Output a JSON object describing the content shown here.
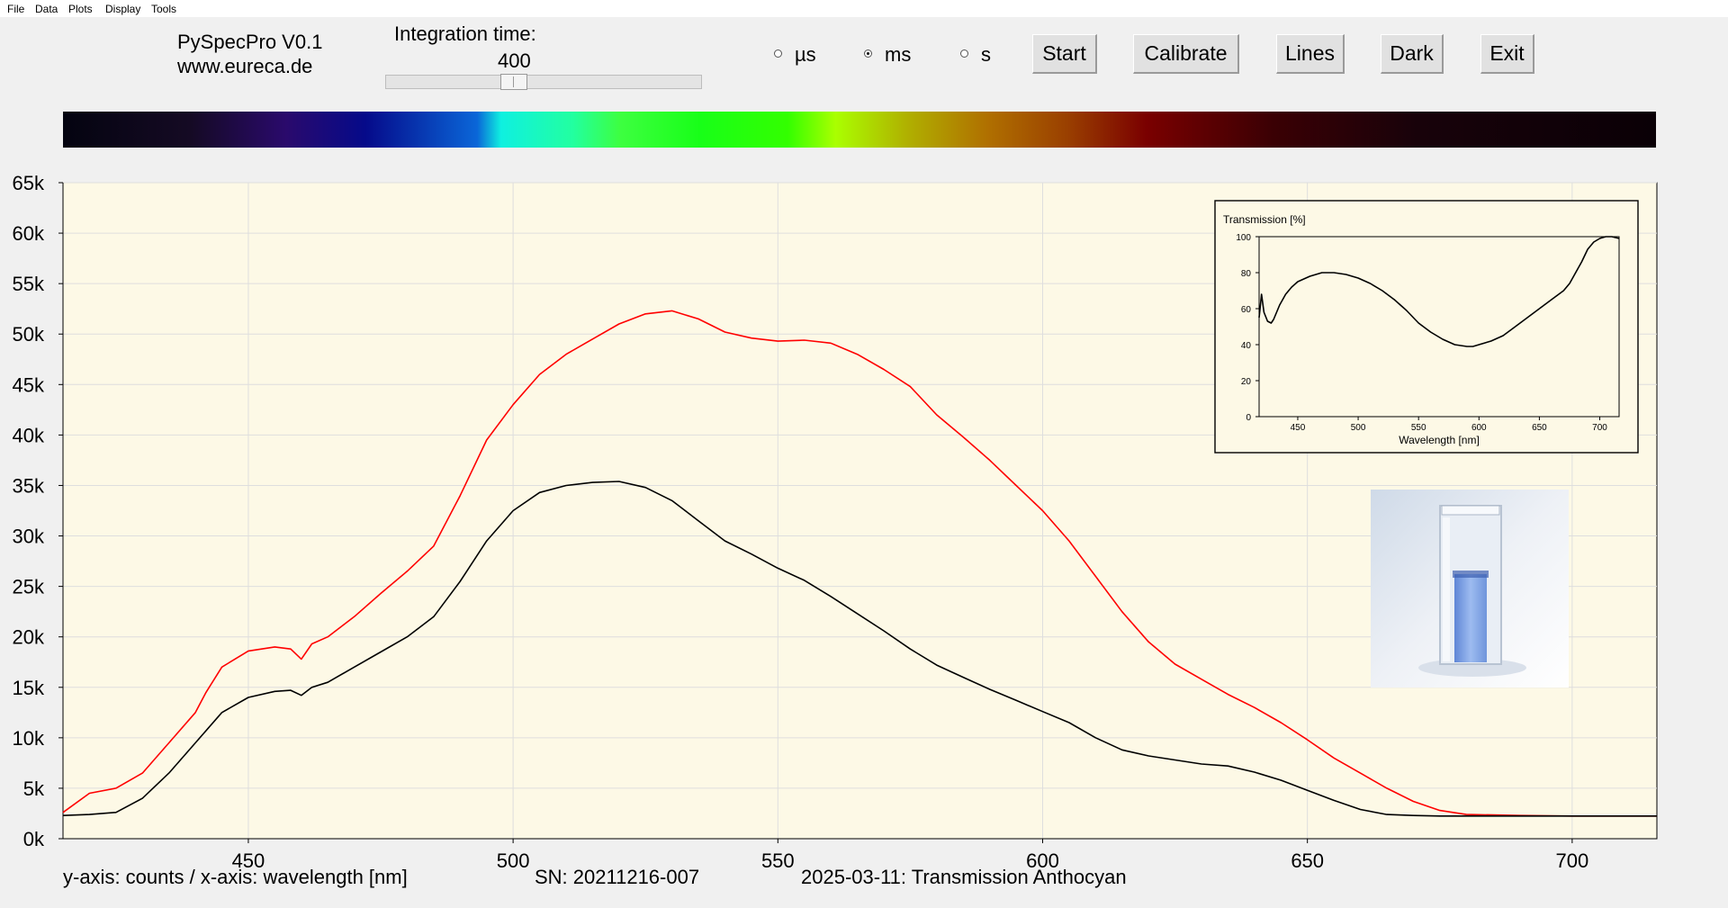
{
  "menu": [
    "File",
    "Data",
    "Plots",
    "Display",
    "Tools"
  ],
  "app": {
    "name": "PySpecPro V0.1",
    "website": "www.eureca.de"
  },
  "integration": {
    "label": "Integration time:",
    "value": "400"
  },
  "units": [
    {
      "label": "µs",
      "selected": false
    },
    {
      "label": "ms",
      "selected": true
    },
    {
      "label": "s",
      "selected": false
    }
  ],
  "buttons": {
    "start": "Start",
    "calibrate": "Calibrate",
    "lines": "Lines",
    "dark": "Dark",
    "exit": "Exit"
  },
  "footer": {
    "axes_note": "y-axis: counts / x-axis: wavelength [nm]",
    "serial": "SN: 20211216-007",
    "note": "2025-03-11: Transmission Anthocyan"
  },
  "colors": {
    "plot_bg": "#fdf9e6",
    "reference": "#ff0000",
    "sample": "#000000"
  },
  "chart_data": [
    {
      "type": "line",
      "title": "",
      "xlabel": "",
      "ylabel": "",
      "xlim": [
        415,
        716
      ],
      "ylim": [
        0,
        65000
      ],
      "xticks": [
        "450",
        "500",
        "550",
        "600",
        "650",
        "700"
      ],
      "xtick_values": [
        450,
        500,
        550,
        600,
        650,
        700
      ],
      "yticks": [
        "0k",
        "5k",
        "10k",
        "15k",
        "20k",
        "25k",
        "30k",
        "35k",
        "40k",
        "45k",
        "50k",
        "55k",
        "60k",
        "65k"
      ],
      "ytick_values": [
        0,
        5000,
        10000,
        15000,
        20000,
        25000,
        30000,
        35000,
        40000,
        45000,
        50000,
        55000,
        60000,
        65000
      ],
      "grid": true,
      "series": [
        {
          "color": "#ff0000",
          "x": [
            415,
            420,
            425,
            430,
            435,
            440,
            442,
            445,
            450,
            455,
            458,
            460,
            462,
            465,
            470,
            475,
            480,
            485,
            490,
            495,
            500,
            505,
            510,
            515,
            520,
            525,
            530,
            535,
            540,
            545,
            550,
            555,
            560,
            565,
            570,
            575,
            580,
            585,
            590,
            595,
            600,
            605,
            610,
            615,
            620,
            625,
            630,
            635,
            640,
            645,
            650,
            655,
            660,
            665,
            670,
            675,
            680,
            685,
            690,
            700,
            716
          ],
          "y": [
            2600,
            4500,
            5000,
            6500,
            9500,
            12500,
            14500,
            17000,
            18600,
            19000,
            18800,
            17800,
            19300,
            20000,
            22000,
            24300,
            26500,
            29000,
            34000,
            39500,
            43000,
            46000,
            48000,
            49500,
            51000,
            52000,
            52300,
            51500,
            50200,
            49600,
            49300,
            49400,
            49100,
            48000,
            46500,
            44800,
            42000,
            39800,
            37500,
            35000,
            32500,
            29500,
            26000,
            22500,
            19500,
            17300,
            15800,
            14300,
            13000,
            11500,
            9800,
            8000,
            6500,
            5000,
            3700,
            2800,
            2400,
            2350,
            2300,
            2250,
            2250
          ]
        },
        {
          "color": "#000000",
          "x": [
            415,
            420,
            425,
            430,
            435,
            440,
            445,
            450,
            455,
            458,
            460,
            462,
            465,
            470,
            475,
            480,
            485,
            490,
            495,
            500,
            505,
            510,
            515,
            520,
            525,
            530,
            535,
            540,
            545,
            550,
            555,
            560,
            565,
            570,
            575,
            580,
            585,
            590,
            595,
            600,
            605,
            610,
            615,
            620,
            625,
            630,
            635,
            640,
            645,
            650,
            655,
            660,
            665,
            670,
            675,
            680,
            685,
            690,
            700,
            716
          ],
          "y": [
            2300,
            2400,
            2600,
            4000,
            6500,
            9500,
            12500,
            14000,
            14600,
            14700,
            14200,
            15000,
            15500,
            17000,
            18500,
            20000,
            22000,
            25500,
            29500,
            32500,
            34300,
            35000,
            35300,
            35400,
            34800,
            33500,
            31500,
            29500,
            28200,
            26800,
            25600,
            24000,
            22300,
            20600,
            18800,
            17200,
            16000,
            14800,
            13700,
            12600,
            11500,
            10000,
            8800,
            8200,
            7800,
            7400,
            7200,
            6600,
            5800,
            4800,
            3800,
            2900,
            2400,
            2300,
            2250,
            2250,
            2250,
            2250,
            2250,
            2250
          ]
        }
      ]
    },
    {
      "type": "line",
      "title": "Transmission [%]",
      "xlabel": "Wavelength [nm]",
      "ylabel": "",
      "xlim": [
        418,
        716
      ],
      "ylim": [
        0,
        100
      ],
      "xticks": [
        "450",
        "500",
        "550",
        "600",
        "650",
        "700"
      ],
      "xtick_values": [
        450,
        500,
        550,
        600,
        650,
        700
      ],
      "yticks": [
        "0",
        "20",
        "40",
        "60",
        "80",
        "100"
      ],
      "ytick_values": [
        0,
        20,
        40,
        60,
        80,
        100
      ],
      "grid": false,
      "series": [
        {
          "color": "#000000",
          "x": [
            418,
            420,
            422,
            425,
            428,
            430,
            435,
            440,
            445,
            450,
            460,
            470,
            480,
            490,
            500,
            510,
            520,
            530,
            540,
            550,
            560,
            570,
            580,
            590,
            595,
            600,
            610,
            620,
            630,
            640,
            650,
            660,
            670,
            675,
            680,
            685,
            690,
            695,
            700,
            705,
            710,
            716
          ],
          "y": [
            55,
            68,
            58,
            53,
            52,
            54,
            62,
            68,
            72,
            75,
            78,
            80,
            80,
            79,
            77,
            74,
            70,
            65,
            59,
            52,
            47,
            43,
            40,
            39,
            39,
            40,
            42,
            45,
            50,
            55,
            60,
            65,
            70,
            74,
            80,
            86,
            93,
            97,
            99,
            100,
            100,
            99
          ]
        }
      ]
    }
  ]
}
